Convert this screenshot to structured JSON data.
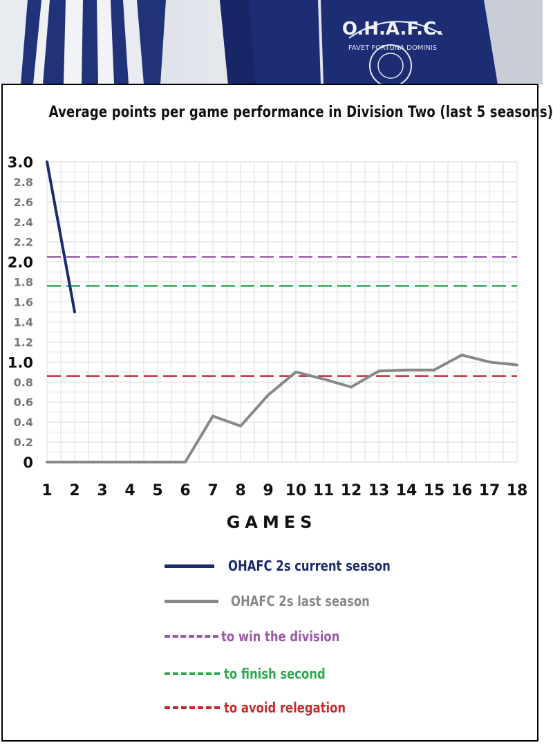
{
  "chart_data": {
    "type": "line",
    "title": "Average points per game performance in Division Two (last 5 seasons)",
    "xlabel": "GAMES",
    "ylabel": "",
    "x": [
      1,
      2,
      3,
      4,
      5,
      6,
      7,
      8,
      9,
      10,
      11,
      12,
      13,
      14,
      15,
      16,
      17,
      18
    ],
    "xlim": [
      1,
      18
    ],
    "ylim": [
      0,
      3.0
    ],
    "y_ticks": [
      "0",
      "0.2",
      "0.4",
      "0.6",
      "0.8",
      "1.0",
      "1.2",
      "1.4",
      "1.6",
      "1.8",
      "2.0",
      "2.2",
      "2.4",
      "2.6",
      "2.8",
      "3.0"
    ],
    "y_major_ticks": [
      "0",
      "1.0",
      "2.0",
      "3.0"
    ],
    "grid": true,
    "series": [
      {
        "name": "OHAFC 2s current season",
        "color": "#1c2a6e",
        "x": [
          1,
          2
        ],
        "values": [
          3.0,
          1.5
        ]
      },
      {
        "name": "OHAFC 2s last season",
        "color": "#888888",
        "x": [
          1,
          2,
          3,
          4,
          5,
          6,
          7,
          8,
          9,
          10,
          11,
          12,
          13,
          14,
          15,
          16,
          17,
          18
        ],
        "values": [
          0,
          0,
          0,
          0,
          0,
          0,
          0.46,
          0.36,
          0.67,
          0.9,
          0.83,
          0.75,
          0.91,
          0.92,
          0.92,
          1.07,
          1.0,
          0.97
        ]
      }
    ],
    "reference_lines": [
      {
        "name": "to win the division",
        "value": 2.05,
        "color": "#9b59a8"
      },
      {
        "name": "to finish second",
        "value": 1.76,
        "color": "#2fa84f"
      },
      {
        "name": "to avoid relegation",
        "value": 0.86,
        "color": "#c62c2c"
      }
    ],
    "legend_position": "bottom"
  },
  "banner": {
    "crest_text": "O.H.A.F.C.",
    "crest_motto": "FAVET FORTUNA DOMINIS"
  }
}
